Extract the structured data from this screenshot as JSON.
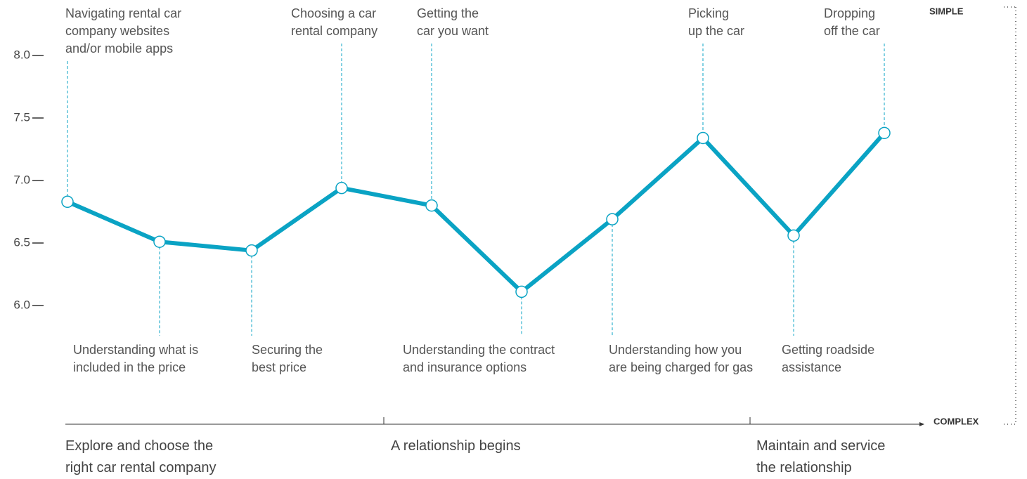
{
  "chart_data": {
    "type": "line",
    "categories": [
      "Navigating rental car\ncompany websites\nand/or mobile apps",
      "Understanding what is\nincluded in the price",
      "Securing the\nbest price",
      "Choosing a car\nrental company",
      "Getting the\ncar you want",
      "Understanding the contract\nand insurance options",
      "Understanding how you\nare being charged for gas",
      "Picking\nup the car",
      "Getting roadside\nassistance",
      "Dropping\noff the car"
    ],
    "values": [
      6.83,
      6.51,
      6.44,
      6.94,
      6.8,
      6.11,
      6.69,
      7.34,
      6.56,
      7.38
    ],
    "color": "#0aa3c4",
    "ylim": [
      6.0,
      8.0
    ],
    "yticks": [
      {
        "value": 6,
        "label": "6.0"
      },
      {
        "value": 6.5,
        "label": "6.5"
      },
      {
        "value": 7,
        "label": "7.0"
      },
      {
        "value": 7.5,
        "label": "7.5"
      },
      {
        "value": 8,
        "label": "8.0"
      }
    ],
    "top_axis_label": "SIMPLE",
    "bottom_axis_label": "COMPLEX",
    "phases": [
      "Explore and choose the\nright car rental company",
      "A relationship begins",
      "Maintain and service\nthe relationship"
    ]
  }
}
